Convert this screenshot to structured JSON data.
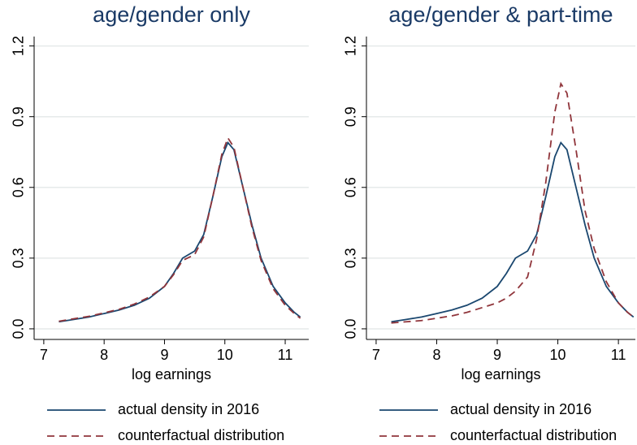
{
  "chart_data": [
    {
      "type": "line",
      "title": "age/gender only",
      "x_label": "log earnings",
      "x": [
        7.25,
        7.5,
        7.75,
        8,
        8.25,
        8.5,
        8.75,
        9,
        9.15,
        9.3,
        9.5,
        9.65,
        9.8,
        9.95,
        10.05,
        10.15,
        10.3,
        10.45,
        10.6,
        10.8,
        11,
        11.15,
        11.25
      ],
      "series": [
        {
          "name": "actual density in 2016",
          "color": "#1a476f",
          "dashed": false,
          "values": [
            0.03,
            0.04,
            0.05,
            0.065,
            0.08,
            0.1,
            0.13,
            0.18,
            0.235,
            0.3,
            0.33,
            0.4,
            0.56,
            0.73,
            0.79,
            0.76,
            0.6,
            0.44,
            0.3,
            0.18,
            0.11,
            0.07,
            0.05
          ]
        },
        {
          "name": "counterfactual distribution",
          "color": "#90353b",
          "dashed": true,
          "values": [
            0.032,
            0.043,
            0.053,
            0.068,
            0.083,
            0.105,
            0.135,
            0.18,
            0.23,
            0.29,
            0.315,
            0.39,
            0.56,
            0.74,
            0.81,
            0.77,
            0.6,
            0.43,
            0.29,
            0.17,
            0.1,
            0.065,
            0.045
          ]
        }
      ],
      "xlim": [
        6.84,
        11.39
      ],
      "xticks": [
        7,
        8,
        9,
        10,
        11
      ],
      "ylim": [
        -0.045,
        1.24
      ],
      "yticks": [
        {
          "value": 0,
          "label": "0.0"
        },
        0.3,
        0.6,
        0.9,
        1.2
      ],
      "grid": true
    },
    {
      "type": "line",
      "title": "age/gender & part-time",
      "x_label": "log earnings",
      "x": [
        7.25,
        7.5,
        7.75,
        8,
        8.25,
        8.5,
        8.75,
        9,
        9.15,
        9.3,
        9.5,
        9.65,
        9.8,
        9.95,
        10.05,
        10.15,
        10.3,
        10.45,
        10.6,
        10.8,
        11,
        11.15,
        11.25
      ],
      "series": [
        {
          "name": "actual density in 2016",
          "color": "#1a476f",
          "dashed": false,
          "values": [
            0.03,
            0.04,
            0.05,
            0.065,
            0.08,
            0.1,
            0.13,
            0.18,
            0.235,
            0.3,
            0.33,
            0.4,
            0.56,
            0.73,
            0.79,
            0.76,
            0.6,
            0.44,
            0.3,
            0.18,
            0.11,
            0.07,
            0.05
          ]
        },
        {
          "name": "counterfactual distribution",
          "color": "#90353b",
          "dashed": true,
          "values": [
            0.025,
            0.03,
            0.035,
            0.045,
            0.055,
            0.07,
            0.09,
            0.11,
            0.13,
            0.16,
            0.22,
            0.38,
            0.62,
            0.92,
            1.04,
            1.0,
            0.76,
            0.5,
            0.34,
            0.2,
            0.11,
            0.07,
            0.05
          ]
        }
      ],
      "xlim": [
        6.84,
        11.28
      ],
      "xticks": [
        7,
        8,
        9,
        10,
        11
      ],
      "ylim": [
        -0.045,
        1.24
      ],
      "yticks": [
        {
          "value": 0,
          "label": "0.0"
        },
        0.3,
        0.6,
        0.9,
        1.2
      ],
      "grid": true
    }
  ]
}
